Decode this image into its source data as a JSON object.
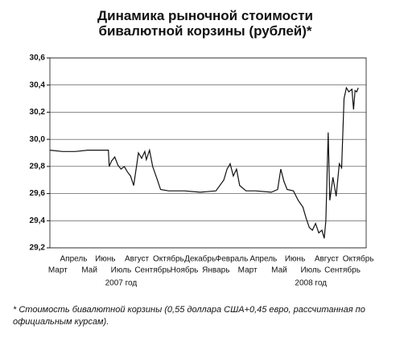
{
  "chart_data": {
    "type": "line",
    "title": "Динамика рыночной стоимости бивалютной корзины (рублей)*",
    "xlim": [
      0,
      20
    ],
    "xticks": [
      {
        "value": 0.5,
        "label": "Март"
      },
      {
        "value": 1.5,
        "label": "Апрель"
      },
      {
        "value": 2.5,
        "label": "Май"
      },
      {
        "value": 3.5,
        "label": "Июнь"
      },
      {
        "value": 4.5,
        "label": "Июль"
      },
      {
        "value": 5.5,
        "label": "Август"
      },
      {
        "value": 6.5,
        "label": "Сентябрь"
      },
      {
        "value": 7.5,
        "label": "Октябрь"
      },
      {
        "value": 8.5,
        "label": "Ноябрь"
      },
      {
        "value": 9.5,
        "label": "Декабрь"
      },
      {
        "value": 10.5,
        "label": "Январь"
      },
      {
        "value": 11.5,
        "label": "Февраль"
      },
      {
        "value": 12.5,
        "label": "Март"
      },
      {
        "value": 13.5,
        "label": "Апрель"
      },
      {
        "value": 14.5,
        "label": "Май"
      },
      {
        "value": 15.5,
        "label": "Июнь"
      },
      {
        "value": 16.5,
        "label": "Июль"
      },
      {
        "value": 17.5,
        "label": "Август"
      },
      {
        "value": 18.5,
        "label": "Сентябрь"
      },
      {
        "value": 19.5,
        "label": "Октябрь"
      }
    ],
    "x_groups": [
      "2007 год",
      "2008 год"
    ],
    "ylim": [
      29.2,
      30.6
    ],
    "yticks": [
      {
        "value": 29.2,
        "label": "29,2"
      },
      {
        "value": 29.4,
        "label": "29,4"
      },
      {
        "value": 29.6,
        "label": "29,6"
      },
      {
        "value": 29.8,
        "label": "29,8"
      },
      {
        "value": 30.0,
        "label": "30,0"
      },
      {
        "value": 30.2,
        "label": "30,2"
      },
      {
        "value": 30.4,
        "label": "30,4"
      },
      {
        "value": 30.6,
        "label": "30,6"
      }
    ],
    "grid": true,
    "color": "#111111",
    "x": [
      0,
      0.8,
      1.6,
      2.4,
      3.2,
      3.7,
      3.75,
      3.9,
      4.1,
      4.3,
      4.5,
      4.7,
      4.9,
      5.1,
      5.3,
      5.5,
      5.6,
      5.8,
      6.0,
      6.1,
      6.3,
      6.5,
      6.8,
      7.0,
      7.5,
      8.5,
      9.5,
      10.5,
      11.0,
      11.2,
      11.4,
      11.6,
      11.8,
      12.0,
      12.4,
      13.0,
      14.0,
      14.4,
      14.6,
      14.8,
      15.0,
      15.4,
      15.7,
      16.0,
      16.2,
      16.4,
      16.6,
      16.8,
      17.0,
      17.2,
      17.35,
      17.45,
      17.6,
      17.7,
      17.9,
      18.1,
      18.3,
      18.45,
      18.6,
      18.75,
      18.9,
      19.1,
      19.2,
      19.3,
      19.4,
      19.5
    ],
    "values": [
      29.92,
      29.91,
      29.91,
      29.92,
      29.92,
      29.92,
      29.8,
      29.84,
      29.87,
      29.81,
      29.78,
      29.8,
      29.76,
      29.73,
      29.66,
      29.82,
      29.9,
      29.86,
      29.91,
      29.85,
      29.92,
      29.8,
      29.7,
      29.63,
      29.62,
      29.62,
      29.61,
      29.62,
      29.7,
      29.78,
      29.82,
      29.73,
      29.78,
      29.66,
      29.62,
      29.62,
      29.61,
      29.63,
      29.78,
      29.69,
      29.63,
      29.62,
      29.55,
      29.5,
      29.42,
      29.35,
      29.33,
      29.38,
      29.31,
      29.33,
      29.27,
      29.4,
      30.05,
      29.55,
      29.72,
      29.58,
      29.82,
      29.79,
      30.3,
      30.38,
      30.35,
      30.37,
      30.22,
      30.36,
      30.35,
      30.38
    ]
  },
  "footnote": "* Стоимость бивалютной корзины (0,55 доллара США+0,45 евро, рассчитанная по официальным курсам)."
}
